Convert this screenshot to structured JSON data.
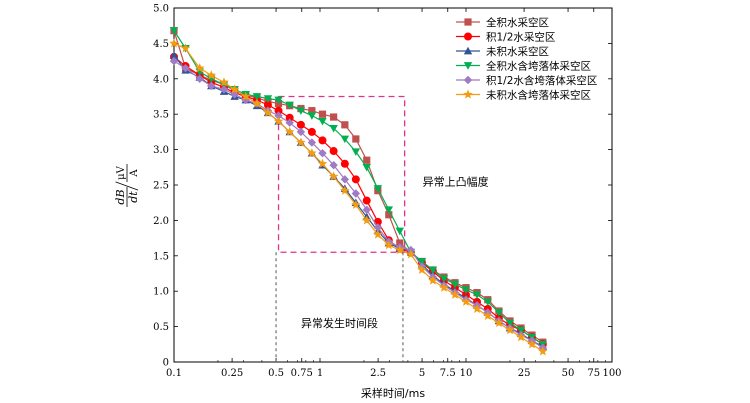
{
  "chart_data": {
    "type": "line",
    "title": "",
    "xlabel": "采样时间/ms",
    "ylabel": {
      "num1": "d",
      "num2": "B",
      "den1": "d",
      "den2": "t",
      "unit_num": "μV",
      "unit_den": "A"
    },
    "x_scale": "log",
    "xlim": [
      0.1,
      100
    ],
    "ylim": [
      0,
      5.0
    ],
    "x_ticks": [
      0.1,
      0.25,
      0.5,
      0.75,
      1,
      2.5,
      5,
      7.5,
      10,
      25,
      50,
      75,
      100
    ],
    "x_tick_labels": [
      "0.1",
      "0.25",
      "0.5",
      "0.75",
      "1",
      "2.5",
      "5",
      "7.5",
      "10",
      "25",
      "50",
      "75",
      "100"
    ],
    "y_ticks": [
      0,
      0.5,
      1.0,
      1.5,
      2.0,
      2.5,
      3.0,
      3.5,
      4.0,
      4.5,
      5.0
    ],
    "y_tick_labels": [
      "0",
      "0.5",
      "1.0",
      "1.5",
      "2.0",
      "2.5",
      "3.0",
      "3.5",
      "4.0",
      "4.5",
      "5.0"
    ],
    "grid": false,
    "legend_position": "top-right",
    "x": [
      0.1,
      0.12,
      0.15,
      0.18,
      0.22,
      0.26,
      0.31,
      0.37,
      0.44,
      0.52,
      0.62,
      0.74,
      0.88,
      1.04,
      1.24,
      1.48,
      1.76,
      2.09,
      2.49,
      2.96,
      3.52,
      4.19,
      4.99,
      5.93,
      7.06,
      8.4,
      10.0,
      11.9,
      14.1,
      16.8,
      20.0,
      23.8,
      28.3,
      33.6
    ],
    "series": [
      {
        "name": "全积水采空区",
        "color": "#c0504d",
        "marker": "square",
        "values": [
          4.68,
          4.15,
          4.05,
          3.98,
          3.92,
          3.83,
          3.77,
          3.73,
          3.68,
          3.65,
          3.62,
          3.58,
          3.55,
          3.5,
          3.46,
          3.35,
          3.15,
          2.85,
          2.42,
          2.08,
          1.68,
          1.55,
          1.42,
          1.3,
          1.2,
          1.12,
          1.05,
          0.98,
          0.88,
          0.72,
          0.58,
          0.48,
          0.38,
          0.28
        ]
      },
      {
        "name": "积1/2水采空区",
        "color": "#ff0000",
        "marker": "circle",
        "values": [
          4.31,
          4.18,
          4.05,
          3.95,
          3.88,
          3.8,
          3.75,
          3.7,
          3.63,
          3.55,
          3.45,
          3.35,
          3.25,
          3.13,
          2.98,
          2.8,
          2.58,
          2.28,
          1.98,
          1.72,
          1.6,
          1.55,
          1.4,
          1.28,
          1.15,
          1.05,
          0.95,
          0.85,
          0.75,
          0.62,
          0.52,
          0.45,
          0.35,
          0.25
        ]
      },
      {
        "name": "未积水采空区",
        "color": "#2f5597",
        "marker": "triangle",
        "values": [
          4.33,
          4.12,
          4.02,
          3.9,
          3.82,
          3.75,
          3.7,
          3.62,
          3.52,
          3.4,
          3.25,
          3.1,
          2.95,
          2.78,
          2.62,
          2.45,
          2.25,
          2.05,
          1.85,
          1.68,
          1.6,
          1.58,
          1.38,
          1.22,
          1.1,
          1.0,
          0.9,
          0.8,
          0.7,
          0.58,
          0.48,
          0.4,
          0.3,
          0.22
        ]
      },
      {
        "name": "全积水含垮落体采空区",
        "color": "#00b050",
        "marker": "triangle-down",
        "values": [
          4.68,
          4.43,
          4.1,
          4.0,
          3.92,
          3.85,
          3.78,
          3.75,
          3.72,
          3.7,
          3.63,
          3.55,
          3.48,
          3.4,
          3.3,
          3.15,
          2.97,
          2.75,
          2.45,
          2.15,
          1.85,
          1.55,
          1.42,
          1.3,
          1.18,
          1.1,
          1.02,
          0.95,
          0.85,
          0.7,
          0.55,
          0.45,
          0.35,
          0.25
        ]
      },
      {
        "name": "积1/2水含垮落体采空区",
        "color": "#9f7bc4",
        "marker": "diamond",
        "values": [
          4.25,
          4.15,
          4.0,
          3.9,
          3.85,
          3.78,
          3.7,
          3.65,
          3.55,
          3.48,
          3.38,
          3.25,
          3.1,
          2.95,
          2.78,
          2.58,
          2.38,
          2.15,
          1.9,
          1.7,
          1.62,
          1.58,
          1.35,
          1.2,
          1.08,
          0.98,
          0.88,
          0.8,
          0.7,
          0.58,
          0.48,
          0.38,
          0.3,
          0.2
        ]
      },
      {
        "name": "未积水含垮落体采空区",
        "color": "#f39c12",
        "marker": "star",
        "values": [
          4.5,
          4.43,
          4.15,
          4.05,
          3.95,
          3.85,
          3.75,
          3.65,
          3.52,
          3.4,
          3.25,
          3.1,
          2.95,
          2.8,
          2.62,
          2.42,
          2.22,
          2.0,
          1.8,
          1.65,
          1.58,
          1.52,
          1.3,
          1.15,
          1.05,
          0.95,
          0.85,
          0.75,
          0.65,
          0.55,
          0.45,
          0.35,
          0.25,
          0.15
        ]
      }
    ],
    "annotations": [
      {
        "text": "异常上凸幅度",
        "box": {
          "x": [
            0.52,
            3.8
          ],
          "y": [
            1.55,
            3.75
          ]
        }
      },
      {
        "text": "异常发生时间段",
        "vlines": [
          0.5,
          3.7
        ]
      }
    ]
  }
}
